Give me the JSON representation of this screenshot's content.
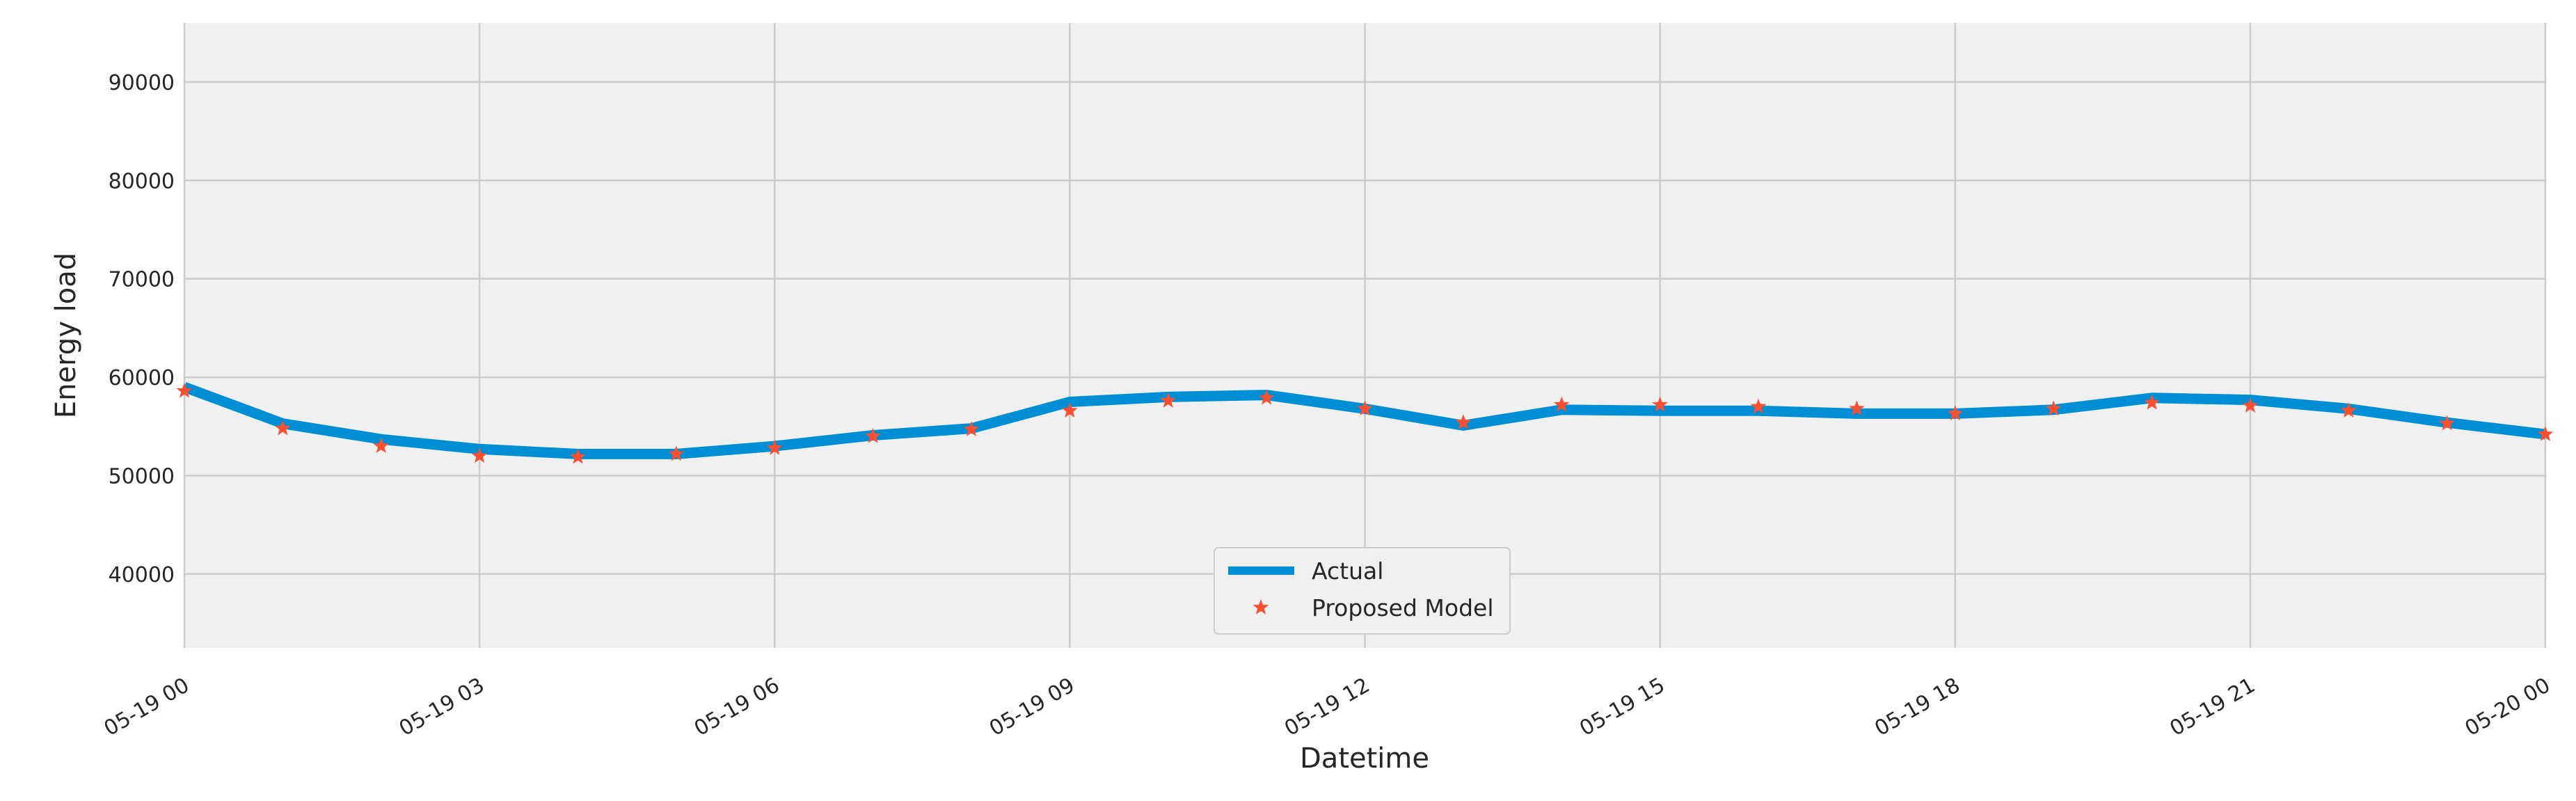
{
  "chart_data": {
    "type": "line",
    "xlabel": "Datetime",
    "ylabel": "Energy load",
    "x": [
      "05-19 00",
      "05-19 01",
      "05-19 02",
      "05-19 03",
      "05-19 04",
      "05-19 05",
      "05-19 06",
      "05-19 07",
      "05-19 08",
      "05-19 09",
      "05-19 10",
      "05-19 11",
      "05-19 12",
      "05-19 13",
      "05-19 14",
      "05-19 15",
      "05-19 16",
      "05-19 17",
      "05-19 18",
      "05-19 19",
      "05-19 20",
      "05-19 21",
      "05-19 22",
      "05-19 23",
      "05-20 00"
    ],
    "x_ticks": [
      "05-19 00",
      "05-19 03",
      "05-19 06",
      "05-19 09",
      "05-19 12",
      "05-19 15",
      "05-19 18",
      "05-19 21",
      "05-20 00"
    ],
    "y_ticks": [
      40000,
      50000,
      60000,
      70000,
      80000,
      90000
    ],
    "ylim": [
      32500,
      96000
    ],
    "grid": true,
    "legend_position": "bottom-center",
    "series": [
      {
        "name": "Actual",
        "style": "line",
        "color": "#008fd5",
        "values": [
          59000,
          55300,
          53700,
          52700,
          52200,
          52200,
          53000,
          54100,
          54800,
          57500,
          58000,
          58200,
          56800,
          55100,
          56700,
          56600,
          56600,
          56300,
          56300,
          56700,
          57900,
          57700,
          56800,
          55400,
          54200
        ]
      },
      {
        "name": "Proposed Model",
        "style": "star",
        "color": "#fc4f30",
        "values": [
          58600,
          54800,
          53000,
          52000,
          51900,
          52200,
          52800,
          54000,
          54700,
          56600,
          57600,
          57900,
          56800,
          55400,
          57200,
          57200,
          57000,
          56800,
          56300,
          56800,
          57400,
          57100,
          56600,
          55300,
          54200
        ]
      }
    ]
  }
}
